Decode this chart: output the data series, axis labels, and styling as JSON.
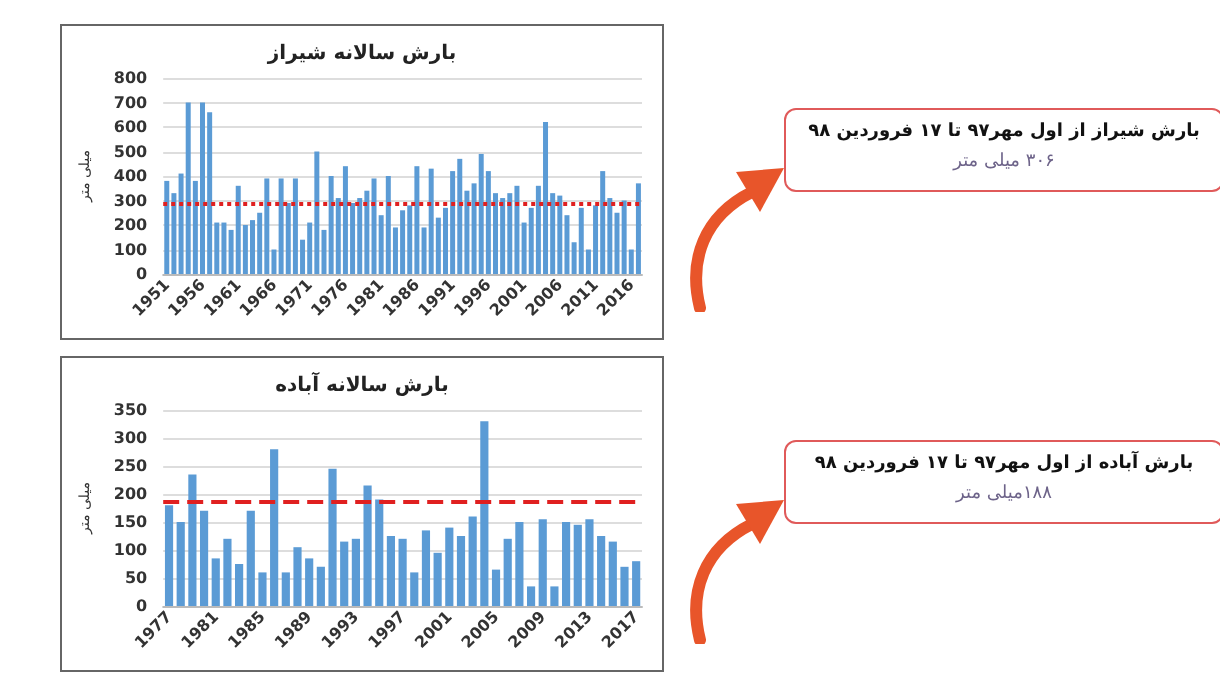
{
  "chart_data": [
    {
      "type": "bar",
      "title": "بارش سالانه شیراز",
      "ylabel": "میلی متر",
      "categories": [
        "1951",
        null,
        null,
        null,
        null,
        "1956",
        null,
        null,
        null,
        null,
        "1961",
        null,
        null,
        null,
        null,
        "1966",
        null,
        null,
        null,
        null,
        "1971",
        null,
        null,
        null,
        null,
        "1976",
        null,
        null,
        null,
        null,
        "1981",
        null,
        null,
        null,
        null,
        "1986",
        null,
        null,
        null,
        null,
        "1991",
        null,
        null,
        null,
        null,
        "1996",
        null,
        null,
        null,
        null,
        "2001",
        null,
        null,
        null,
        null,
        "2006",
        null,
        null,
        null,
        null,
        "2011",
        null,
        null,
        null,
        null,
        "2016",
        null
      ],
      "values": [
        380,
        330,
        410,
        700,
        380,
        700,
        660,
        210,
        210,
        180,
        360,
        200,
        220,
        250,
        390,
        100,
        390,
        290,
        390,
        140,
        210,
        500,
        180,
        400,
        310,
        440,
        290,
        310,
        340,
        390,
        240,
        400,
        190,
        260,
        280,
        440,
        190,
        430,
        230,
        270,
        420,
        470,
        340,
        370,
        490,
        420,
        330,
        310,
        330,
        360,
        210,
        270,
        360,
        620,
        330,
        320,
        240,
        130,
        270,
        100,
        280,
        420,
        310,
        250,
        300,
        100,
        370
      ],
      "color": "#5b9bd5",
      "ylim": [
        0,
        800
      ],
      "yticks": [
        0,
        100,
        200,
        300,
        400,
        500,
        600,
        700,
        800
      ],
      "grid": "y",
      "ref_lines": [
        {
          "axis": "y",
          "value": 290,
          "color": "#e02020",
          "line_style": "dotted"
        }
      ],
      "annotations": [
        "بارش شیراز از اول مهر۹۷ تا ۱۷ فروردین ۹۸",
        "۳۰۶ میلی متر"
      ]
    },
    {
      "type": "bar",
      "title": "بارش سالانه آباده",
      "ylabel": "میلی متر",
      "categories": [
        "1977",
        null,
        null,
        null,
        "1981",
        null,
        null,
        null,
        "1985",
        null,
        null,
        null,
        "1989",
        null,
        null,
        null,
        "1993",
        null,
        null,
        null,
        "1997",
        null,
        null,
        null,
        "2001",
        null,
        null,
        null,
        "2005",
        null,
        null,
        null,
        "2009",
        null,
        null,
        null,
        "2013",
        null,
        null,
        null,
        "2017"
      ],
      "values": [
        180,
        150,
        235,
        170,
        85,
        120,
        75,
        170,
        60,
        280,
        60,
        105,
        85,
        70,
        245,
        115,
        120,
        215,
        190,
        125,
        120,
        60,
        135,
        95,
        140,
        125,
        160,
        330,
        65,
        120,
        150,
        35,
        155,
        35,
        150,
        145,
        155,
        125,
        115,
        70,
        80
      ],
      "color": "#5b9bd5",
      "ylim": [
        0,
        350
      ],
      "yticks": [
        0,
        50,
        100,
        150,
        200,
        250,
        300,
        350
      ],
      "grid": "y",
      "ref_lines": [
        {
          "axis": "y",
          "value": 185,
          "color": "#e02020",
          "line_style": "dashed"
        }
      ],
      "annotations": [
        "بارش آباده از اول مهر۹۷ تا ۱۷ فروردین ۹۸",
        "۱۸۸میلی متر"
      ]
    }
  ]
}
